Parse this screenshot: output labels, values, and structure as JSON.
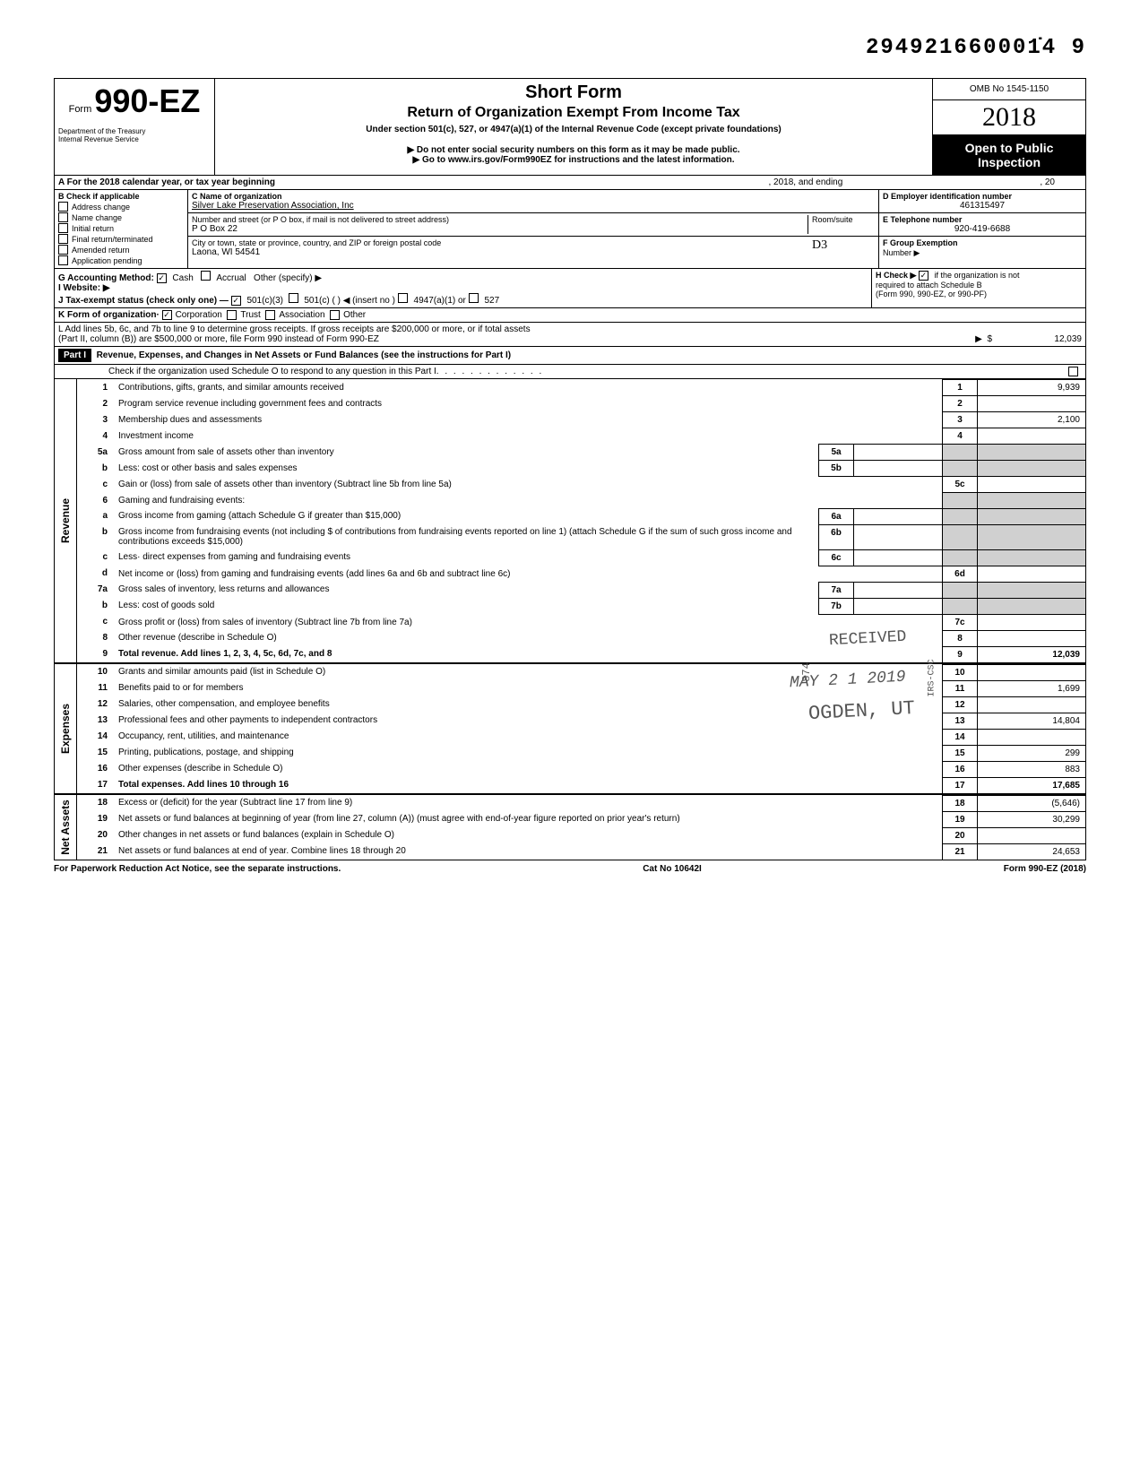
{
  "top_number": "294921660001̇4 9",
  "header": {
    "form_prefix": "Form",
    "form_name": "990-EZ",
    "dept1": "Department of the Treasury",
    "dept2": "Internal Revenue Service",
    "title": "Short Form",
    "subtitle": "Return of Organization Exempt From Income Tax",
    "under": "Under section 501(c), 527, or 4947(a)(1) of the Internal Revenue Code (except private foundations)",
    "warn": "▶ Do not enter social security numbers on this form as it may be made public.",
    "goto": "▶ Go to www.irs.gov/Form990EZ for instructions and the latest information.",
    "omb": "OMB No 1545-1150",
    "year": "2018",
    "open_public": "Open to Public Inspection"
  },
  "rowA": {
    "label": "A For the 2018 calendar year, or tax year beginning",
    "mid": ", 2018, and ending",
    "end": ", 20"
  },
  "rowB": {
    "heading": "B Check if applicable",
    "items": [
      "Address change",
      "Name change",
      "Initial return",
      "Final return/terminated",
      "Amended return",
      "Application pending"
    ]
  },
  "rowC": {
    "label": "C Name of organization",
    "value": "Silver Lake Preservation Association, Inc",
    "addr_label": "Number and street (or P O  box, if mail is not delivered to street address)",
    "addr_value": "P O  Box 22",
    "room_label": "Room/suite",
    "city_label": "City or town, state or province, country, and ZIP or foreign postal code",
    "city_value": "Laona, WI  54541",
    "dln": "D3"
  },
  "rowD": {
    "label": "D Employer identification number",
    "value": "461315497"
  },
  "rowE": {
    "label": "E Telephone number",
    "value": "920-419-6688"
  },
  "rowF": {
    "label": "F Group Exemption",
    "label2": "Number ▶"
  },
  "rowG": {
    "label": "G Accounting Method:",
    "cash": "Cash",
    "accrual": "Accrual",
    "other": "Other (specify) ▶"
  },
  "rowH": {
    "label": "H Check ▶",
    "text": "if the organization is not",
    "text2": "required to attach Schedule B",
    "text3": "(Form 990, 990-EZ, or 990-PF)"
  },
  "rowI": {
    "label": "I Website: ▶"
  },
  "rowJ": {
    "label": "J Tax-exempt status (check only one) —",
    "c3": "501(c)(3)",
    "c": "501(c) (",
    "insert": ") ◀ (insert no )",
    "a1": "4947(a)(1) or",
    "s527": "527"
  },
  "rowK": {
    "label": "K Form of organization·",
    "corp": "Corporation",
    "trust": "Trust",
    "assoc": "Association",
    "other": "Other"
  },
  "rowL": {
    "text1": "L Add lines 5b, 6c, and 7b to line 9 to determine gross receipts. If gross receipts are $200,000 or more, or if total assets",
    "text2": "(Part II, column (B)) are $500,000 or more, file Form 990 instead of Form 990-EZ",
    "arrow": "▶",
    "dollar": "$",
    "value": "12,039"
  },
  "part1": {
    "label": "Part I",
    "title": "Revenue, Expenses, and Changes in Net Assets or Fund Balances (see the instructions for Part I)",
    "check": "Check if the organization used Schedule O to respond to any question in this Part I"
  },
  "sections": {
    "revenue": "Revenue",
    "expenses": "Expenses",
    "netassets": "Net Assets"
  },
  "lines": [
    {
      "n": "1",
      "d": "Contributions, gifts, grants, and similar amounts received",
      "box": "1",
      "val": "9,939"
    },
    {
      "n": "2",
      "d": "Program service revenue including government fees and contracts",
      "box": "2",
      "val": ""
    },
    {
      "n": "3",
      "d": "Membership dues and assessments",
      "box": "3",
      "val": "2,100"
    },
    {
      "n": "4",
      "d": "Investment income",
      "box": "4",
      "val": ""
    },
    {
      "n": "5a",
      "d": "Gross amount from sale of assets other than inventory",
      "mid": "5a"
    },
    {
      "n": "b",
      "d": "Less: cost or other basis and sales expenses",
      "mid": "5b"
    },
    {
      "n": "c",
      "d": "Gain or (loss) from sale of assets other than inventory (Subtract line 5b from line 5a)",
      "box": "5c",
      "val": ""
    },
    {
      "n": "6",
      "d": "Gaming and fundraising events:"
    },
    {
      "n": "a",
      "d": "Gross income from gaming (attach Schedule G if greater than $15,000)",
      "mid": "6a"
    },
    {
      "n": "b",
      "d": "Gross income from fundraising events (not including  $                 of contributions from fundraising events reported on line 1) (attach Schedule G if the sum of such gross income and contributions exceeds $15,000)",
      "mid": "6b"
    },
    {
      "n": "c",
      "d": "Less· direct expenses from gaming and fundraising events",
      "mid": "6c"
    },
    {
      "n": "d",
      "d": "Net income or (loss) from gaming and fundraising events (add lines 6a and 6b and subtract line 6c)",
      "box": "6d",
      "val": ""
    },
    {
      "n": "7a",
      "d": "Gross sales of inventory, less returns and allowances",
      "mid": "7a"
    },
    {
      "n": "b",
      "d": "Less: cost of goods sold",
      "mid": "7b"
    },
    {
      "n": "c",
      "d": "Gross profit or (loss) from sales of inventory (Subtract line 7b from line 7a)",
      "box": "7c",
      "val": ""
    },
    {
      "n": "8",
      "d": "Other revenue (describe in Schedule O)",
      "box": "8",
      "val": ""
    },
    {
      "n": "9",
      "d": "Total revenue. Add lines 1, 2, 3, 4, 5c, 6d, 7c, and 8",
      "box": "9",
      "val": "12,039",
      "bold": true
    }
  ],
  "exp_lines": [
    {
      "n": "10",
      "d": "Grants and similar amounts paid (list in Schedule O)",
      "box": "10",
      "val": ""
    },
    {
      "n": "11",
      "d": "Benefits paid to or for members",
      "box": "11",
      "val": "1,699"
    },
    {
      "n": "12",
      "d": "Salaries, other compensation, and employee benefits",
      "box": "12",
      "val": ""
    },
    {
      "n": "13",
      "d": "Professional fees and other payments to independent contractors",
      "box": "13",
      "val": "14,804"
    },
    {
      "n": "14",
      "d": "Occupancy, rent, utilities, and maintenance",
      "box": "14",
      "val": ""
    },
    {
      "n": "15",
      "d": "Printing, publications, postage, and shipping",
      "box": "15",
      "val": "299"
    },
    {
      "n": "16",
      "d": "Other expenses (describe in Schedule O)",
      "box": "16",
      "val": "883"
    },
    {
      "n": "17",
      "d": "Total expenses. Add lines 10 through 16",
      "box": "17",
      "val": "17,685",
      "bold": true
    }
  ],
  "net_lines": [
    {
      "n": "18",
      "d": "Excess or (deficit) for the year (Subtract line 17 from line 9)",
      "box": "18",
      "val": "(5,646)"
    },
    {
      "n": "19",
      "d": "Net assets or fund balances at beginning of year (from line 27, column (A)) (must agree with end-of-year figure reported on prior year's return)",
      "box": "19",
      "val": "30,299"
    },
    {
      "n": "20",
      "d": "Other changes in net assets or fund balances (explain in Schedule O)",
      "box": "20",
      "val": ""
    },
    {
      "n": "21",
      "d": "Net assets or fund balances at end of year. Combine lines 18 through 20",
      "box": "21",
      "val": "24,653"
    }
  ],
  "footer": {
    "left": "For Paperwork Reduction Act Notice, see the separate instructions.",
    "mid": "Cat  No  10642I",
    "right": "Form 990-EZ (2018)"
  },
  "stamps": {
    "received": "RECEIVED",
    "date": "MAY 2 1 2019",
    "ogden": "OGDEN, UT",
    "irs": "IRS-CSC",
    "num": "874"
  }
}
